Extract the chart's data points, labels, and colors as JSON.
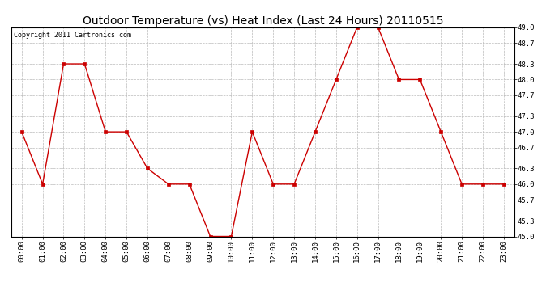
{
  "title": "Outdoor Temperature (vs) Heat Index (Last 24 Hours) 20110515",
  "copyright": "Copyright 2011 Cartronics.com",
  "x_labels": [
    "00:00",
    "01:00",
    "02:00",
    "03:00",
    "04:00",
    "05:00",
    "06:00",
    "07:00",
    "08:00",
    "09:00",
    "10:00",
    "11:00",
    "12:00",
    "13:00",
    "14:00",
    "15:00",
    "16:00",
    "17:00",
    "18:00",
    "19:00",
    "20:00",
    "21:00",
    "22:00",
    "23:00"
  ],
  "y_values": [
    47.0,
    46.0,
    48.3,
    48.3,
    47.0,
    47.0,
    46.3,
    46.0,
    46.0,
    45.0,
    45.0,
    47.0,
    46.0,
    46.0,
    47.0,
    48.0,
    49.0,
    49.0,
    48.0,
    48.0,
    47.0,
    46.0,
    46.0,
    46.0
  ],
  "ylim": [
    45.0,
    49.0
  ],
  "yticks": [
    45.0,
    45.3,
    45.7,
    46.0,
    46.3,
    46.7,
    47.0,
    47.3,
    47.7,
    48.0,
    48.3,
    48.7,
    49.0
  ],
  "ytick_labels": [
    "45.0",
    "45.3",
    "45.7",
    "46.0",
    "46.3",
    "46.7",
    "47.0",
    "47.3",
    "47.7",
    "48.0",
    "48.3",
    "48.7",
    "49.0"
  ],
  "line_color": "#cc0000",
  "marker": "s",
  "marker_size": 3,
  "background_color": "#ffffff",
  "plot_bg_color": "#ffffff",
  "grid_color": "#bbbbbb",
  "title_fontsize": 10,
  "copyright_fontsize": 6,
  "tick_fontsize": 6.5
}
